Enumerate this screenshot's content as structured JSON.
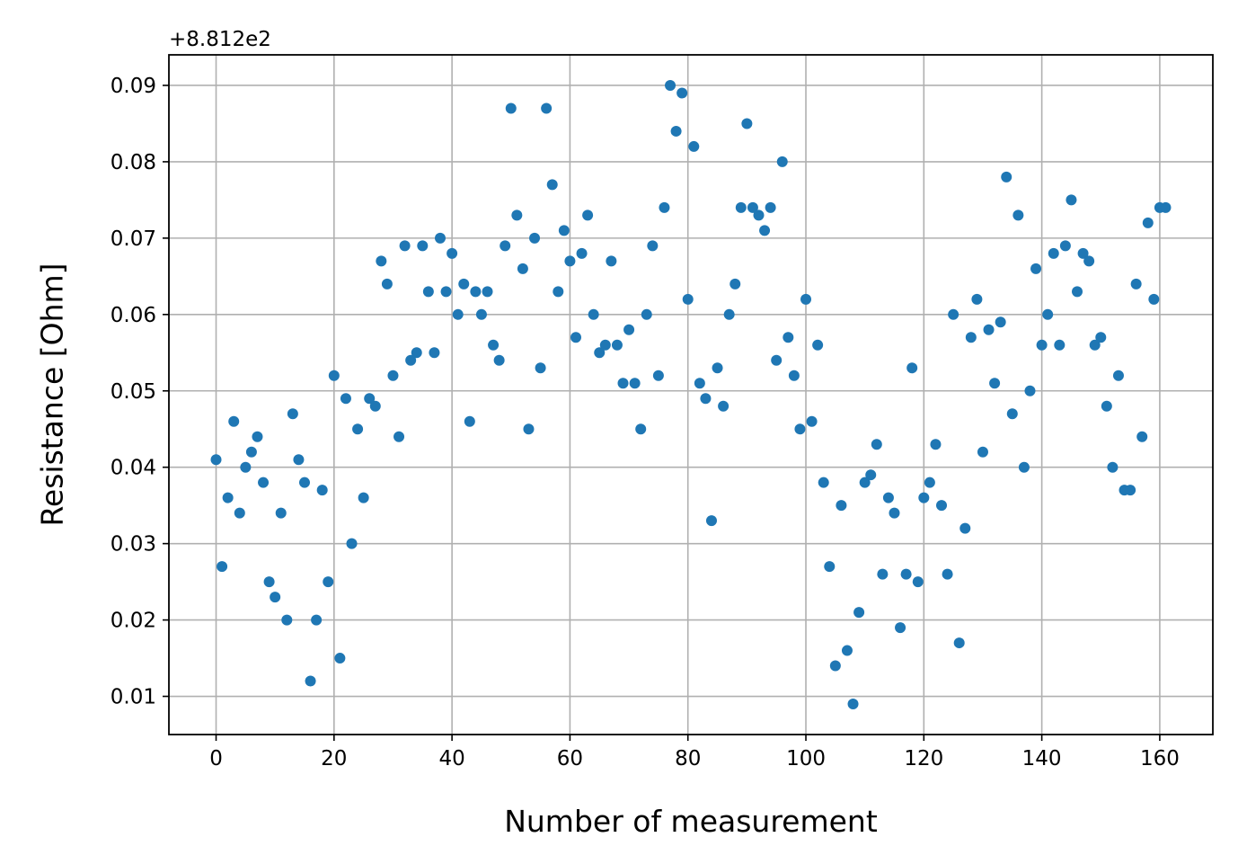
{
  "chart_data": {
    "type": "scatter",
    "title": "",
    "xlabel": "Number of measurement",
    "ylabel": "Resistance [Ohm]",
    "y_offset_text": "+8.812e2",
    "xlim": [
      -8,
      169
    ],
    "ylim": [
      0.005,
      0.094
    ],
    "xticks": [
      0,
      20,
      40,
      60,
      80,
      100,
      120,
      140,
      160
    ],
    "xtick_labels": [
      "0",
      "20",
      "40",
      "60",
      "80",
      "100",
      "120",
      "140",
      "160"
    ],
    "yticks": [
      0.01,
      0.02,
      0.03,
      0.04,
      0.05,
      0.06,
      0.07,
      0.08,
      0.09
    ],
    "ytick_labels": [
      "0.01",
      "0.02",
      "0.03",
      "0.04",
      "0.05",
      "0.06",
      "0.07",
      "0.08",
      "0.09"
    ],
    "grid": true,
    "color": "#1f77b4",
    "series": [
      {
        "x": [
          0,
          1,
          2,
          3,
          4,
          5,
          6,
          7,
          8,
          9,
          10,
          11,
          12,
          13,
          14,
          15,
          16,
          17,
          18,
          19,
          20,
          21,
          22,
          23,
          24,
          25,
          26,
          27,
          28,
          29,
          30,
          31,
          32,
          33,
          34,
          35,
          36,
          37,
          38,
          39,
          40,
          41,
          42,
          43,
          44,
          45,
          46,
          47,
          48,
          49,
          50,
          51,
          52,
          53,
          54,
          55,
          56,
          57,
          58,
          59,
          60,
          61,
          62,
          63,
          64,
          65,
          66,
          67,
          68,
          69,
          70,
          71,
          72,
          73,
          74,
          75,
          76,
          77,
          78,
          79,
          80,
          81,
          82,
          83,
          84,
          85,
          86,
          87,
          88,
          89,
          90,
          91,
          92,
          93,
          94,
          95,
          96,
          97,
          98,
          99,
          100,
          101,
          102,
          103,
          104,
          105,
          106,
          107,
          108,
          109,
          110,
          111,
          112,
          113,
          114,
          115,
          116,
          117,
          118,
          119,
          120,
          121,
          122,
          123,
          124,
          125,
          126,
          127,
          128,
          129,
          130,
          131,
          132,
          133,
          134,
          135,
          136,
          137,
          138,
          139,
          140,
          141,
          142,
          143,
          144,
          145,
          146,
          147,
          148,
          149,
          150,
          151,
          152,
          153,
          154,
          155,
          156,
          157,
          158,
          159,
          160,
          161
        ],
        "y": [
          0.041,
          0.027,
          0.036,
          0.046,
          0.034,
          0.04,
          0.042,
          0.044,
          0.038,
          0.025,
          0.023,
          0.034,
          0.02,
          0.047,
          0.041,
          0.038,
          0.012,
          0.02,
          0.037,
          0.025,
          0.052,
          0.015,
          0.049,
          0.03,
          0.045,
          0.036,
          0.049,
          0.048,
          0.067,
          0.064,
          0.052,
          0.044,
          0.069,
          0.054,
          0.055,
          0.069,
          0.063,
          0.055,
          0.07,
          0.063,
          0.068,
          0.06,
          0.064,
          0.046,
          0.063,
          0.06,
          0.063,
          0.056,
          0.054,
          0.069,
          0.087,
          0.073,
          0.066,
          0.045,
          0.07,
          0.053,
          0.087,
          0.077,
          0.063,
          0.071,
          0.067,
          0.057,
          0.068,
          0.073,
          0.06,
          0.055,
          0.056,
          0.067,
          0.056,
          0.051,
          0.058,
          0.051,
          0.045,
          0.06,
          0.069,
          0.052,
          0.074,
          0.09,
          0.084,
          0.089,
          0.062,
          0.082,
          0.051,
          0.049,
          0.033,
          0.053,
          0.048,
          0.06,
          0.064,
          0.074,
          0.085,
          0.074,
          0.073,
          0.071,
          0.074,
          0.054,
          0.08,
          0.057,
          0.052,
          0.045,
          0.062,
          0.046,
          0.056,
          0.038,
          0.027,
          0.014,
          0.035,
          0.016,
          0.009,
          0.021,
          0.038,
          0.039,
          0.043,
          0.026,
          0.036,
          0.034,
          0.019,
          0.026,
          0.053,
          0.025,
          0.036,
          0.038,
          0.043,
          0.035,
          0.026,
          0.06,
          0.017,
          0.032,
          0.057,
          0.062,
          0.042,
          0.058,
          0.051,
          0.059,
          0.078,
          0.047,
          0.073,
          0.04,
          0.05,
          0.066,
          0.056,
          0.06,
          0.068,
          0.056,
          0.069,
          0.075,
          0.063,
          0.068,
          0.067,
          0.056,
          0.057,
          0.048,
          0.04,
          0.052,
          0.037,
          0.037,
          0.064,
          0.044,
          0.072,
          0.062,
          0.074,
          0.074
        ]
      }
    ]
  }
}
